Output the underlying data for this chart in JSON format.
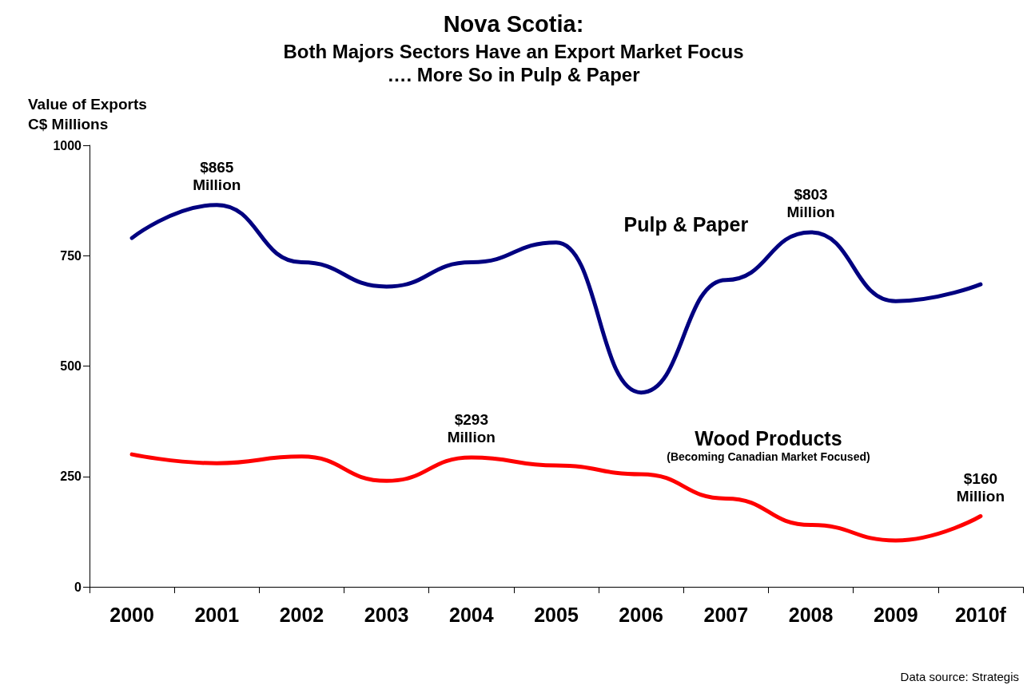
{
  "chart_data": {
    "type": "line",
    "title": "Nova Scotia:",
    "subtitle": "Both Majors Sectors Have an Export Market Focus\n…. More So in Pulp & Paper",
    "ylabel": "Value of Exports\nC$ Millions",
    "categories": [
      "2000",
      "2001",
      "2002",
      "2003",
      "2004",
      "2005",
      "2006",
      "2007",
      "2008",
      "2009",
      "2010f"
    ],
    "series": [
      {
        "name": "Pulp & Paper",
        "color": "#000080",
        "values": [
          790,
          865,
          735,
          680,
          735,
          780,
          440,
          695,
          803,
          647,
          685
        ]
      },
      {
        "name": "Wood Products",
        "color": "#ff0000",
        "values": [
          300,
          280,
          295,
          240,
          293,
          275,
          255,
          200,
          140,
          105,
          160
        ]
      }
    ],
    "ylim": [
      0,
      1000
    ],
    "yticks": [
      0,
      250,
      500,
      750,
      1000
    ],
    "grid": false,
    "legend": false,
    "marker": "none",
    "line_style": "solid",
    "annotations": [
      {
        "text": "$865\nMillion",
        "x": "2001",
        "y": 865
      },
      {
        "text": "$803\nMillion",
        "x": "2008",
        "y": 803
      },
      {
        "text": "$293\nMillion",
        "x": "2004",
        "y": 293
      },
      {
        "text": "$160\nMillion",
        "x": "2010f",
        "y": 160
      },
      "(Becoming Canadian Market Focused)",
      "Data source: Strategis"
    ]
  }
}
